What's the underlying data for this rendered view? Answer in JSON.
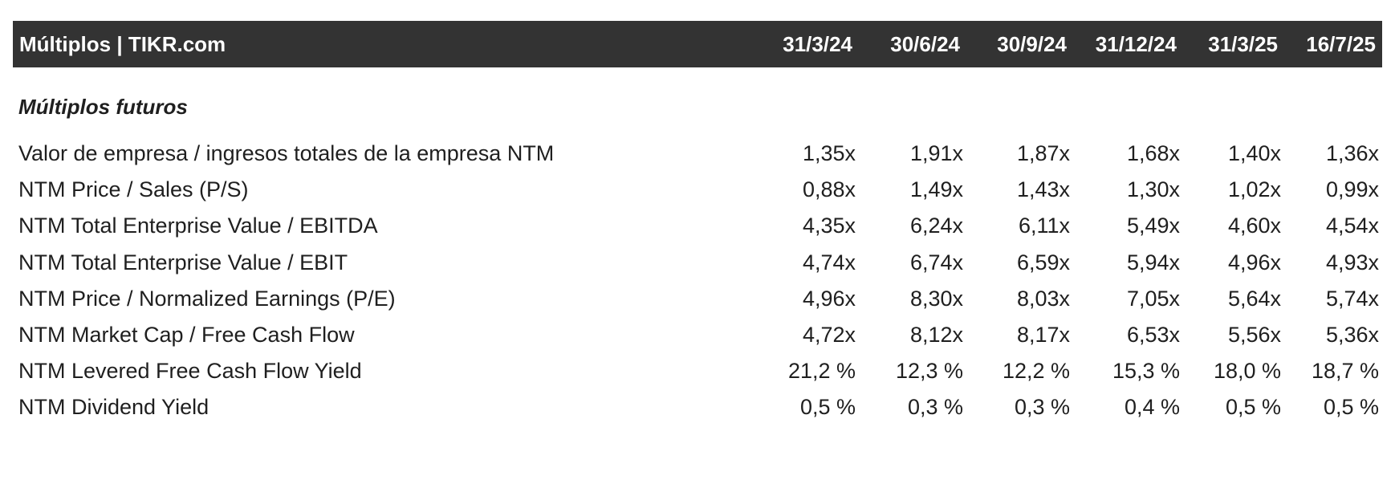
{
  "header": {
    "title": "Múltiplos | TIKR.com",
    "dates": [
      "31/3/24",
      "30/6/24",
      "30/9/24",
      "31/12/24",
      "31/3/25",
      "16/7/25"
    ]
  },
  "section": {
    "title": "Múltiplos futuros"
  },
  "rows": [
    {
      "label": "Valor de empresa / ingresos totales de la empresa NTM",
      "values": [
        "1,35x",
        "1,91x",
        "1,87x",
        "1,68x",
        "1,40x",
        "1,36x"
      ]
    },
    {
      "label": "NTM Price / Sales (P/S)",
      "values": [
        "0,88x",
        "1,49x",
        "1,43x",
        "1,30x",
        "1,02x",
        "0,99x"
      ]
    },
    {
      "label": "NTM Total Enterprise Value / EBITDA",
      "values": [
        "4,35x",
        "6,24x",
        "6,11x",
        "5,49x",
        "4,60x",
        "4,54x"
      ]
    },
    {
      "label": "NTM Total Enterprise Value / EBIT",
      "values": [
        "4,74x",
        "6,74x",
        "6,59x",
        "5,94x",
        "4,96x",
        "4,93x"
      ]
    },
    {
      "label": "NTM Price / Normalized Earnings (P/E)",
      "values": [
        "4,96x",
        "8,30x",
        "8,03x",
        "7,05x",
        "5,64x",
        "5,74x"
      ]
    },
    {
      "label": "NTM Market Cap / Free Cash Flow",
      "values": [
        "4,72x",
        "8,12x",
        "8,17x",
        "6,53x",
        "5,56x",
        "5,36x"
      ]
    },
    {
      "label": "NTM Levered Free Cash Flow Yield",
      "values": [
        "21,2 %",
        "12,3 %",
        "12,2 %",
        "15,3 %",
        "18,0 %",
        "18,7 %"
      ]
    },
    {
      "label": "NTM Dividend Yield",
      "values": [
        "0,5 %",
        "0,3 %",
        "0,3 %",
        "0,4 %",
        "0,5 %",
        "0,5 %"
      ]
    }
  ]
}
